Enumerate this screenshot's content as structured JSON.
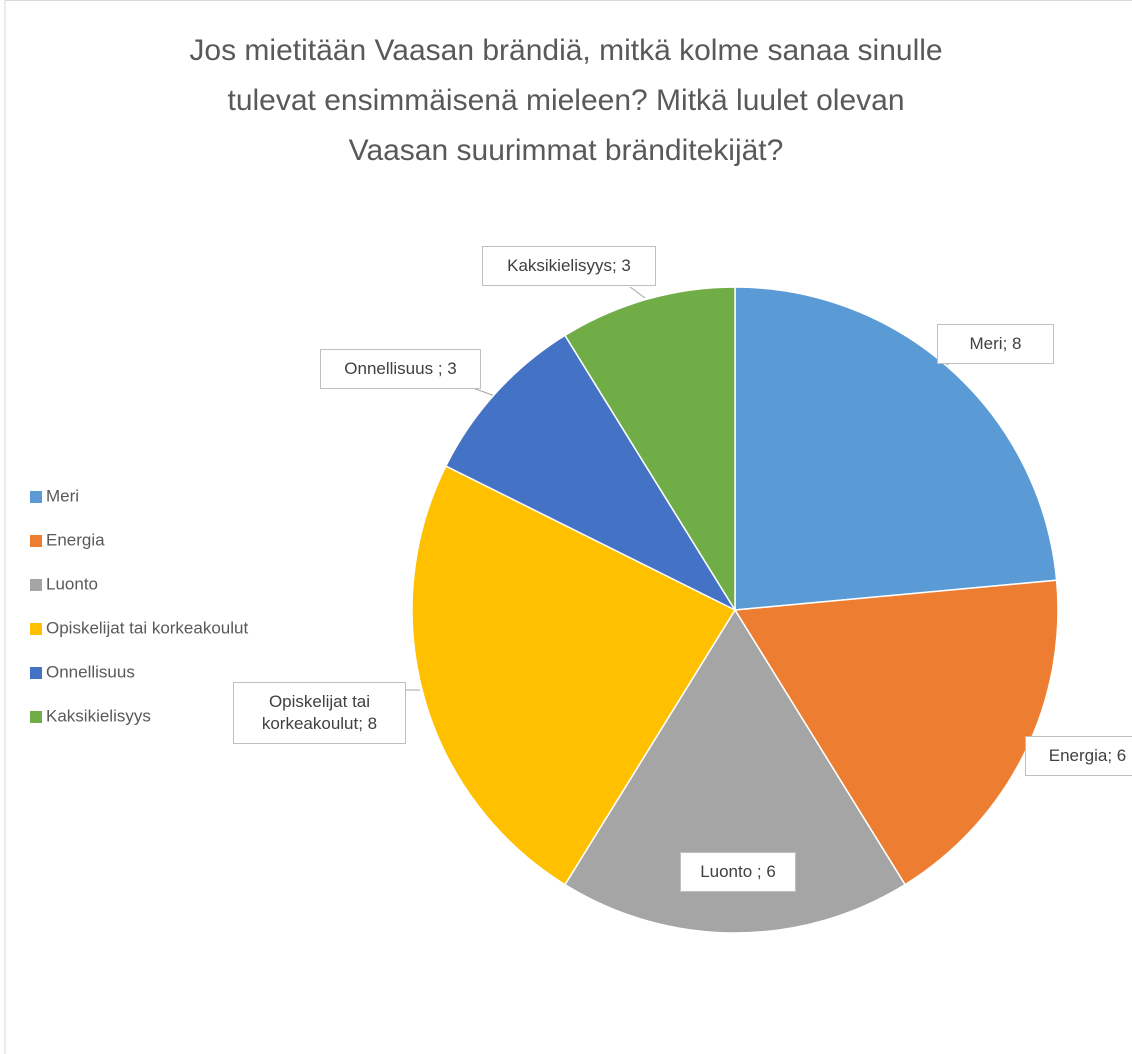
{
  "chart_data": {
    "type": "pie",
    "title": [
      "Jos mietitään Vaasan brändiä, mitkä kolme sanaa sinulle",
      "tulevat ensimmäisenä mieleen? Mitkä luulet olevan",
      "Vaasan suurimmat bränditekijät?"
    ],
    "categories": [
      "Meri",
      "Energia",
      "Luonto",
      "Opiskelijat tai korkeakoulut",
      "Onnellisuus",
      "Kaksikielisyys"
    ],
    "values": [
      8,
      6,
      6,
      8,
      3,
      3
    ],
    "value_labels": [
      "Meri; 8",
      "Energia; 6",
      "Luonto ; 6",
      "Opiskelijat tai korkeakoulut; 8",
      "Onnellisuus ; 3",
      "Kaksikielisyys; 3"
    ],
    "colors": [
      "#5b9bd5",
      "#ed7d31",
      "#a5a5a5",
      "#ffc000",
      "#4472c4",
      "#70ad47"
    ],
    "legend": "left"
  }
}
